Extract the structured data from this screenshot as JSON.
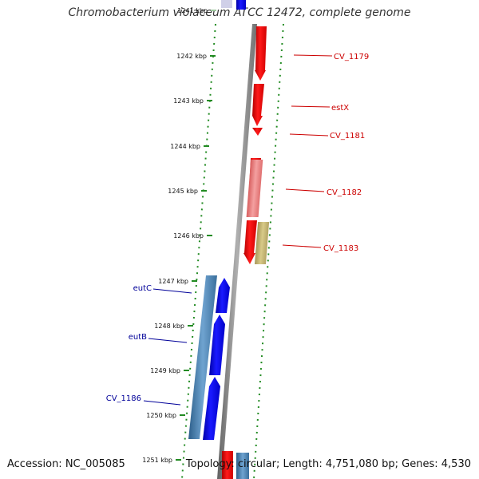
{
  "title": "Chromobacterium violaceum ATCC 12472, complete genome",
  "footer": {
    "accession": "Accession: NC_005085",
    "topology": "Topology: circular; Length: 4,751,080 bp; Genes: 4,530"
  },
  "colors": {
    "forward_gene": "#ff0000",
    "forward_gene_light": "#f08080",
    "reverse_gene": "#0000ff",
    "reverse_gene_light": "#4682b4",
    "olive_feature": "#c8b870",
    "backbone": "#808080",
    "dotted_track": "#228b22",
    "forward_label": "#cc0000",
    "reverse_label": "#000099"
  },
  "ticks": [
    {
      "label": "1241 kbp",
      "faded": true
    },
    {
      "label": "1242 kbp"
    },
    {
      "label": "1243 kbp"
    },
    {
      "label": "1244 kbp"
    },
    {
      "label": "1245 kbp"
    },
    {
      "label": "1246 kbp"
    },
    {
      "label": "1247 kbp"
    },
    {
      "label": "1248 kbp"
    },
    {
      "label": "1249 kbp"
    },
    {
      "label": "1250 kbp"
    },
    {
      "label": "1251 kbp"
    }
  ],
  "forward_genes": [
    {
      "label": "CV_1179"
    },
    {
      "label": "estX"
    },
    {
      "label": "CV_1181"
    },
    {
      "label": "CV_1182"
    },
    {
      "label": "CV_1183"
    }
  ],
  "reverse_genes": [
    {
      "label": "eutC"
    },
    {
      "label": "eutB"
    },
    {
      "label": "CV_1186"
    }
  ]
}
